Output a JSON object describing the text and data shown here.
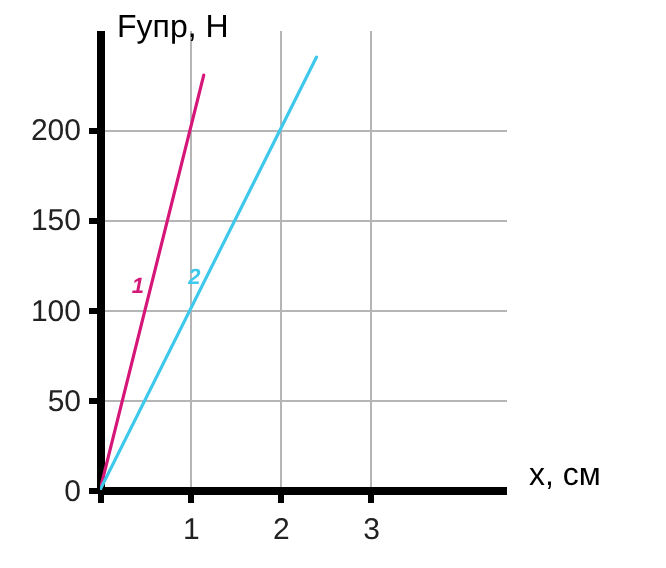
{
  "chart_data": {
    "type": "line",
    "xlabel": "x, см",
    "ylabel": "Fупр, Н",
    "xlim": [
      0,
      4.5
    ],
    "ylim": [
      0,
      255
    ],
    "xticks": [
      {
        "value": 0,
        "label": null
      },
      1,
      2,
      3
    ],
    "yticks": [
      0,
      50,
      100,
      150,
      200
    ],
    "grid": true,
    "series": [
      {
        "name": "1",
        "color": "#d6177a",
        "x": [
          0,
          1.15
        ],
        "values": [
          0,
          230
        ]
      },
      {
        "name": "2",
        "color": "#3ec8ec",
        "x": [
          0,
          2.4
        ],
        "values": [
          0,
          240
        ]
      }
    ]
  }
}
